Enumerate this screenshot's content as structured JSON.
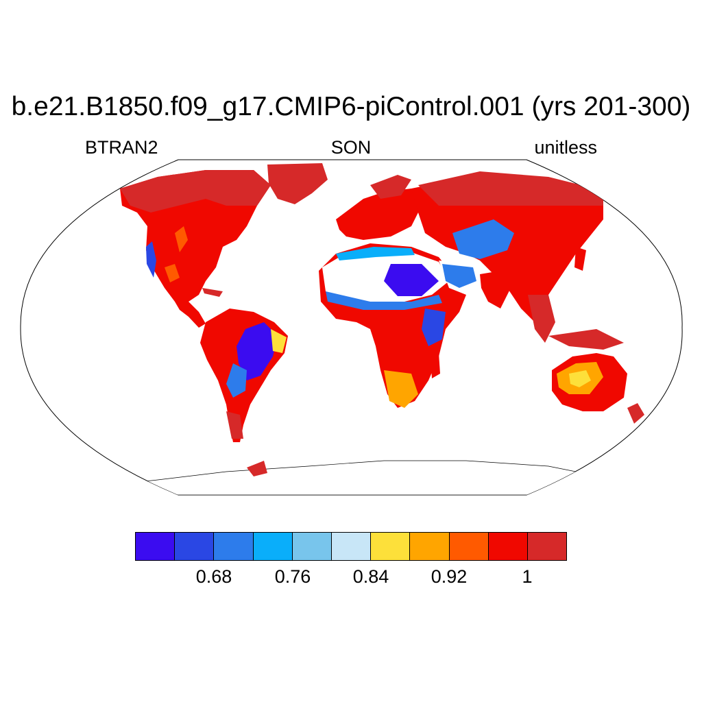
{
  "title": "b.e21.B1850.f09_g17.CMIP6-piControl.001 (yrs 201-300)",
  "left_label": "BTRAN2",
  "center_label": "SON",
  "right_label": "unitless",
  "colorbar": {
    "colors": [
      "#3b0cf0",
      "#2a47e4",
      "#2d7ceb",
      "#0aaefa",
      "#78c5ec",
      "#c8e6f7",
      "#fde03a",
      "#ffa500",
      "#ff5a00",
      "#f00800",
      "#d62929"
    ],
    "labels": [
      "0.68",
      "0.76",
      "0.84",
      "0.92",
      "1"
    ]
  },
  "map": {
    "projection": "Robinson",
    "ocean_color": "#ffffff",
    "coastline_color": "#000000"
  }
}
